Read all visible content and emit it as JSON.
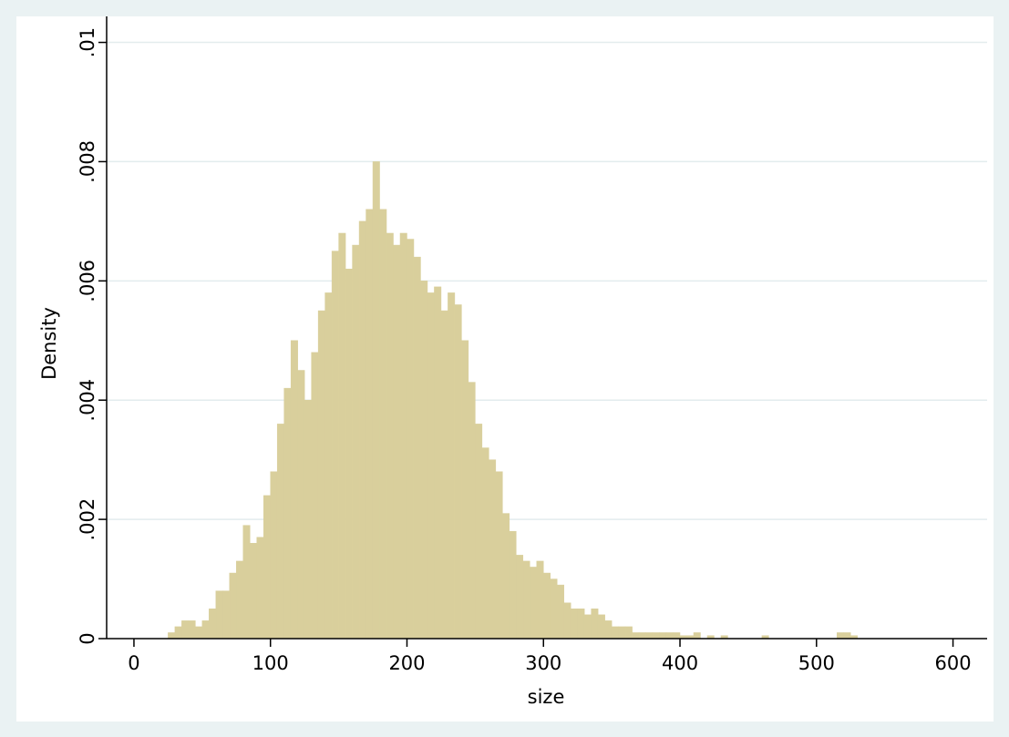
{
  "chart_data": {
    "type": "histogram",
    "ylabel": "Density",
    "xlabel": "size",
    "bins": [
      25,
      30,
      35,
      40,
      45,
      50,
      55,
      60,
      65,
      70,
      75,
      80,
      85,
      90,
      95,
      100,
      105,
      110,
      115,
      120,
      125,
      130,
      135,
      140,
      145,
      150,
      155,
      160,
      165,
      170,
      175,
      180,
      185,
      190,
      195,
      200,
      205,
      210,
      215,
      220,
      225,
      230,
      235,
      240,
      245,
      250,
      255,
      260,
      265,
      270,
      275,
      280,
      285,
      290,
      295,
      300,
      305,
      310,
      315,
      320,
      325,
      330,
      335,
      340,
      345,
      350,
      355,
      360,
      365,
      370,
      375,
      380,
      385,
      390,
      395,
      400,
      405,
      410,
      415,
      420,
      425,
      430,
      435,
      440,
      445,
      450,
      455,
      460,
      465,
      470,
      475,
      480,
      485,
      490,
      495,
      500,
      505,
      510,
      515,
      520,
      525,
      530
    ],
    "counts": [
      0.0001,
      0.0002,
      0.0003,
      0.0003,
      0.0002,
      0.0003,
      0.0005,
      0.0008,
      0.0008,
      0.0011,
      0.0013,
      0.0019,
      0.0016,
      0.0017,
      0.0024,
      0.0028,
      0.0036,
      0.0042,
      0.005,
      0.0045,
      0.004,
      0.0048,
      0.0055,
      0.0058,
      0.0065,
      0.0068,
      0.0062,
      0.0066,
      0.007,
      0.0072,
      0.008,
      0.0072,
      0.0068,
      0.0066,
      0.0068,
      0.0067,
      0.0064,
      0.006,
      0.0058,
      0.0059,
      0.0055,
      0.0058,
      0.0056,
      0.005,
      0.0043,
      0.0036,
      0.0032,
      0.003,
      0.0028,
      0.0021,
      0.0018,
      0.0014,
      0.0013,
      0.0012,
      0.0013,
      0.0011,
      0.001,
      0.0009,
      0.0006,
      0.0005,
      0.0005,
      0.0004,
      0.0005,
      0.0004,
      0.0003,
      0.0002,
      0.0002,
      0.0002,
      0.0001,
      0.0001,
      0.0001,
      0.0001,
      0.0001,
      0.0001,
      0.0001,
      5e-05,
      5e-05,
      0.0001,
      0,
      5e-05,
      0,
      5e-05,
      0,
      0,
      0,
      0,
      0,
      5e-05,
      0,
      0,
      0,
      0,
      0,
      0,
      0,
      0,
      0,
      0,
      0.0001,
      0.0001,
      5e-05
    ],
    "color": "#d9cf9c",
    "xlim": [
      -20,
      625
    ],
    "ylim": [
      0,
      0.0101
    ],
    "xticks": [
      0,
      100,
      200,
      300,
      400,
      500,
      600
    ],
    "yticks": [
      0,
      {
        "value": 0.002,
        "label": ".002"
      },
      {
        "value": 0.004,
        "label": ".004"
      },
      {
        "value": 0.006,
        "label": ".006"
      },
      {
        "value": 0.008,
        "label": ".008"
      },
      {
        "value": 0.01,
        "label": ".01"
      }
    ],
    "grid": true
  }
}
